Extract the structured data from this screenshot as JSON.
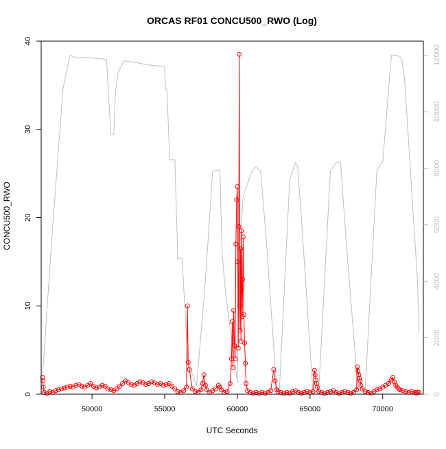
{
  "chart_data": {
    "type": "scatter",
    "title": "ORCAS RF01 CONCU500_RWO (Log)",
    "xlabel": "UTC Seconds",
    "ylabel": "CONCU500_RWO",
    "xlim": [
      46500,
      72800
    ],
    "ylim": [
      0,
      40
    ],
    "y2lim": [
      0,
      12500
    ],
    "x_ticks": [
      50000,
      55000,
      60000,
      65000,
      70000
    ],
    "x_tick_labels": [
      "50000",
      "55000",
      "60000",
      "65000",
      "70000"
    ],
    "y_ticks": [
      0,
      10,
      20,
      30,
      40
    ],
    "y_tick_labels": [
      "0",
      "10",
      "20",
      "30",
      "40"
    ],
    "y2_ticks": [
      0,
      2000,
      4000,
      6000,
      8000,
      10000,
      12000
    ],
    "y2_tick_labels": [
      "0",
      "2000",
      "4000",
      "6000",
      "8000",
      "10000",
      "12000"
    ],
    "colors": {
      "primary": "#ff0000",
      "secondary": "#bdbdbd",
      "frame": "#000000"
    },
    "grid": false,
    "legend": "none",
    "series": [
      {
        "axis": "left",
        "style": "points+line",
        "x": [
          46600,
          46620,
          46650,
          46700,
          46900,
          47100,
          47300,
          47500,
          47700,
          47900,
          48100,
          48300,
          48500,
          48700,
          48900,
          49100,
          49300,
          49500,
          49700,
          49900,
          50100,
          50300,
          50500,
          50700,
          50900,
          51100,
          51300,
          51500,
          51700,
          51900,
          52100,
          52300,
          52500,
          52700,
          52900,
          53100,
          53300,
          53500,
          53700,
          53900,
          54100,
          54300,
          54500,
          54700,
          54900,
          55100,
          55300,
          55500,
          55700,
          55900,
          56100,
          56300,
          56500,
          56560,
          56620,
          56700,
          56900,
          57100,
          57300,
          57500,
          57600,
          57700,
          57800,
          57900,
          58100,
          58300,
          58500,
          58700,
          58800,
          58900,
          59100,
          59300,
          59500,
          59600,
          59650,
          59700,
          59750,
          59800,
          59850,
          59900,
          59950,
          60000,
          60030,
          60060,
          60100,
          60130,
          60160,
          60190,
          60220,
          60250,
          60280,
          60310,
          60340,
          60370,
          60400,
          60450,
          60500,
          60550,
          60600,
          60700,
          60900,
          61100,
          61300,
          61500,
          61700,
          61900,
          62100,
          62300,
          62500,
          62600,
          62700,
          62800,
          63000,
          63200,
          63400,
          63600,
          63800,
          64000,
          64200,
          64400,
          64600,
          64800,
          65000,
          65200,
          65300,
          65350,
          65400,
          65450,
          65500,
          65600,
          65800,
          66000,
          66200,
          66400,
          66600,
          66800,
          67000,
          67200,
          67400,
          67600,
          67800,
          68000,
          68200,
          68250,
          68300,
          68350,
          68400,
          68450,
          68500,
          68600,
          68800,
          69000,
          69200,
          69400,
          69600,
          69800,
          70000,
          70200,
          70400,
          70600,
          70700,
          70800,
          70900,
          71000,
          71100,
          71200,
          71400,
          71600,
          71800,
          72000,
          72200,
          72300,
          72400,
          72500
        ],
        "y": [
          1.9,
          1.5,
          0.8,
          0.2,
          0.1,
          0.3,
          0.2,
          0.4,
          0.5,
          0.6,
          0.7,
          0.8,
          0.9,
          0.8,
          1.0,
          1.1,
          0.9,
          0.8,
          1.0,
          1.2,
          0.9,
          0.7,
          0.8,
          1.0,
          0.9,
          0.6,
          0.5,
          0.4,
          0.6,
          0.9,
          1.2,
          1.5,
          1.3,
          1.1,
          1.0,
          1.2,
          1.4,
          1.3,
          1.1,
          1.2,
          1.4,
          1.3,
          1.1,
          1.2,
          1.0,
          1.1,
          1.2,
          0.9,
          0.6,
          0.3,
          0.2,
          0.4,
          0.8,
          10.0,
          3.6,
          2.8,
          0.6,
          0.3,
          0.2,
          0.5,
          1.2,
          2.2,
          1.0,
          0.5,
          0.2,
          0.4,
          0.6,
          1.0,
          0.8,
          0.5,
          0.2,
          0.3,
          1.2,
          4.0,
          8.2,
          3.0,
          9.5,
          5.5,
          4.0,
          17.0,
          22.0,
          23.5,
          15.0,
          5.2,
          19.0,
          38.5,
          10.0,
          7.2,
          16.5,
          6.0,
          18.5,
          12.0,
          8.8,
          13.0,
          17.8,
          9.0,
          5.8,
          3.5,
          1.2,
          0.4,
          0.2,
          0.1,
          0.2,
          0.1,
          0.2,
          0.1,
          0.2,
          0.4,
          2.8,
          1.5,
          0.5,
          0.3,
          0.2,
          0.1,
          0.2,
          0.1,
          0.3,
          0.4,
          0.2,
          0.1,
          0.2,
          0.3,
          0.2,
          0.3,
          2.7,
          2.2,
          1.6,
          1.2,
          0.8,
          0.3,
          0.2,
          0.1,
          0.2,
          0.3,
          0.4,
          0.2,
          0.1,
          0.2,
          0.3,
          0.2,
          0.1,
          0.2,
          0.5,
          3.1,
          2.6,
          2.2,
          1.8,
          1.5,
          1.0,
          0.6,
          0.3,
          0.2,
          0.1,
          0.3,
          0.5,
          0.6,
          0.8,
          1.0,
          1.2,
          1.6,
          1.9,
          1.4,
          1.0,
          0.8,
          0.6,
          0.5,
          0.4,
          0.3,
          0.2,
          0.3,
          0.2,
          0.1,
          0.2,
          0.2
        ]
      },
      {
        "axis": "right",
        "style": "line",
        "x": [
          46600,
          47300,
          48000,
          48400,
          48500,
          48700,
          49000,
          49500,
          50000,
          50500,
          51000,
          51150,
          51300,
          51500,
          51600,
          51800,
          52200,
          52900,
          54000,
          55000,
          55050,
          55150,
          55350,
          55700,
          55900,
          56200,
          56600,
          57200,
          57800,
          58300,
          58800,
          58950,
          59200,
          59700,
          60000,
          60100,
          60400,
          61000,
          61300,
          61600,
          62000,
          62700,
          62900,
          63600,
          64000,
          64150,
          64400,
          65200,
          65600,
          66400,
          66800,
          67100,
          67500,
          68300,
          68800,
          69600,
          69900,
          70000,
          70600,
          71000,
          71300,
          71500,
          72400,
          72500
        ],
        "y": [
          700,
          6000,
          10800,
          11800,
          12000,
          11950,
          11900,
          11930,
          11900,
          11880,
          11850,
          10400,
          9200,
          9200,
          10600,
          11400,
          11800,
          11750,
          11650,
          11600,
          10800,
          10800,
          8300,
          8300,
          4800,
          4800,
          1100,
          300,
          4000,
          7900,
          7950,
          5000,
          3500,
          1600,
          400,
          4500,
          7000,
          7900,
          8050,
          7900,
          5400,
          200,
          200,
          7600,
          8200,
          8050,
          6300,
          100,
          100,
          7900,
          8200,
          8200,
          5300,
          200,
          200,
          7900,
          8200,
          8200,
          12000,
          12000,
          11900,
          11200,
          4000,
          2200
        ]
      }
    ]
  }
}
